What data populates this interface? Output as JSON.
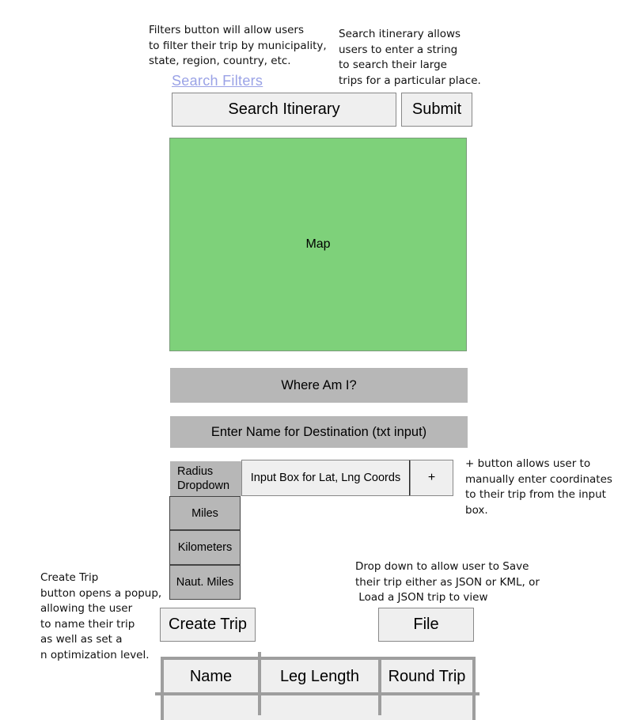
{
  "annotations": {
    "filters_note": "Filters button will allow users\nto filter their trip by municipality,\nstate, region, country, etc.",
    "search_note": "Search itinerary allows\nusers to enter a string\nto search their large\ntrips for a particular place.",
    "plus_note": "+ button allows user to\nmanually enter coordinates\nto their trip from the input\nbox.",
    "create_note": "Create Trip\nbutton opens a popup,\nallowing the user\nto name their trip\nas well as set a\nn optimization level.",
    "file_note": "Drop down to allow user to Save\ntheir trip either as JSON or KML, or\n Load a JSON trip to view"
  },
  "search": {
    "filters_link": "Search Filters",
    "itinerary_label": "Search Itinerary",
    "submit_label": "Submit"
  },
  "map": {
    "label": "Map"
  },
  "where_am_i": "Where Am I?",
  "destination_input": "Enter Name for Destination (txt input)",
  "radius": {
    "dropdown_label": "Radius\nDropdown",
    "options": [
      "Miles",
      "Kilometers",
      "Naut. Miles"
    ]
  },
  "coords": {
    "input_label": "Input Box for Lat, Lng Coords",
    "add_label": "+"
  },
  "actions": {
    "create_trip": "Create Trip",
    "file": "File"
  },
  "table": {
    "headers": [
      "Name",
      "Leg Length",
      "Round Trip"
    ]
  }
}
